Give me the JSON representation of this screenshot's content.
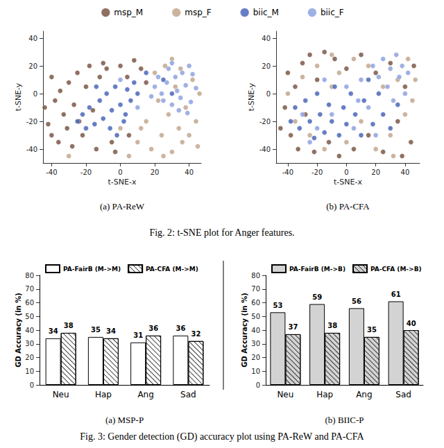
{
  "captions": [
    "Fig. 2: t-SNE plot for Anger features.",
    "Fig. 3: Gender detection (GD) accuracy plot using PA-ReW and PA-CFA"
  ],
  "chart_data": [
    {
      "type": "scatter",
      "title": "(a) PA-ReW",
      "x_label": "t-SNE-x",
      "y_label": "t-SNE-y",
      "xlim": [
        -45,
        47
      ],
      "ylim": [
        -50,
        45
      ],
      "xticks": [
        -40,
        -20,
        0,
        20,
        40
      ],
      "yticks": [
        -40,
        -20,
        0,
        20,
        40
      ],
      "grid": false,
      "legend": "top",
      "series": [
        {
          "name": "msp_M",
          "color": "#7b5747",
          "values": [
            [
              -44,
              -10
            ],
            [
              -42,
              -22
            ],
            [
              -40,
              -30
            ],
            [
              -38,
              -5
            ],
            [
              -36,
              -35
            ],
            [
              -35,
              2
            ],
            [
              -33,
              -15
            ],
            [
              -31,
              -25
            ],
            [
              -30,
              8
            ],
            [
              -28,
              -38
            ],
            [
              -27,
              -8
            ],
            [
              -25,
              15
            ],
            [
              -24,
              -20
            ],
            [
              -22,
              -30
            ],
            [
              -20,
              5
            ],
            [
              -18,
              20
            ],
            [
              -16,
              -12
            ],
            [
              -14,
              -40
            ],
            [
              -12,
              12
            ],
            [
              -10,
              22
            ],
            [
              -8,
              18
            ],
            [
              -5,
              -35
            ],
            [
              0,
              20
            ],
            [
              4,
              12
            ],
            [
              8,
              24
            ],
            [
              12,
              18
            ],
            [
              15,
              8
            ],
            [
              -3,
              -42
            ],
            [
              5,
              -30
            ],
            [
              -40,
              12
            ]
          ]
        },
        {
          "name": "msp_F",
          "color": "#c2a78e",
          "values": [
            [
              15,
              -20
            ],
            [
              18,
              -40
            ],
            [
              20,
              15
            ],
            [
              22,
              -5
            ],
            [
              24,
              -30
            ],
            [
              26,
              20
            ],
            [
              28,
              -15
            ],
            [
              30,
              -42
            ],
            [
              32,
              5
            ],
            [
              34,
              -25
            ],
            [
              36,
              -35
            ],
            [
              38,
              -10
            ],
            [
              40,
              -30
            ],
            [
              42,
              10
            ],
            [
              44,
              -20
            ],
            [
              46,
              0
            ],
            [
              45,
              -38
            ],
            [
              10,
              -35
            ],
            [
              5,
              -45
            ],
            [
              0,
              -25
            ],
            [
              25,
              -45
            ],
            [
              35,
              18
            ],
            [
              -30,
              -45
            ],
            [
              30,
              25
            ],
            [
              12,
              -25
            ]
          ]
        },
        {
          "name": "biic_M",
          "color": "#4a66b8",
          "values": [
            [
              -25,
              -20
            ],
            [
              -22,
              -15
            ],
            [
              -20,
              -25
            ],
            [
              -18,
              -10
            ],
            [
              -15,
              -22
            ],
            [
              -12,
              -5
            ],
            [
              -10,
              -18
            ],
            [
              -8,
              0
            ],
            [
              -5,
              -12
            ],
            [
              -3,
              5
            ],
            [
              0,
              -8
            ],
            [
              2,
              -20
            ],
            [
              4,
              3
            ],
            [
              6,
              -5
            ],
            [
              8,
              8
            ],
            [
              -6,
              -25
            ],
            [
              -2,
              -30
            ],
            [
              10,
              0
            ],
            [
              -14,
              5
            ],
            [
              3,
              -15
            ],
            [
              25,
              10
            ],
            [
              30,
              0
            ],
            [
              15,
              15
            ]
          ]
        },
        {
          "name": "biic_F",
          "color": "#8ea2e0",
          "values": [
            [
              20,
              5
            ],
            [
              22,
              12
            ],
            [
              25,
              -5
            ],
            [
              27,
              8
            ],
            [
              28,
              18
            ],
            [
              30,
              -8
            ],
            [
              32,
              12
            ],
            [
              33,
              2
            ],
            [
              35,
              -3
            ],
            [
              36,
              15
            ],
            [
              38,
              6
            ],
            [
              40,
              20
            ],
            [
              41,
              -6
            ],
            [
              42,
              14
            ],
            [
              44,
              4
            ],
            [
              30,
              22
            ],
            [
              34,
              -12
            ],
            [
              24,
              0
            ],
            [
              39,
              -14
            ],
            [
              18,
              -2
            ],
            [
              10,
              -10
            ],
            [
              0,
              10
            ]
          ]
        }
      ]
    },
    {
      "type": "scatter",
      "title": "(b) PA-CFA",
      "x_label": "t-SNE-x",
      "y_label": "t-SNE-y",
      "xlim": [
        -48,
        50
      ],
      "ylim": [
        -50,
        45
      ],
      "xticks": [
        -40,
        -20,
        0,
        20,
        40
      ],
      "yticks": [
        -40,
        -20,
        0,
        20,
        40
      ],
      "grid": false,
      "legend": "top",
      "series": [
        {
          "name": "msp_M",
          "color": "#7b5747",
          "values": [
            [
              -42,
              -10
            ],
            [
              -40,
              15
            ],
            [
              -38,
              -30
            ],
            [
              -35,
              5
            ],
            [
              -33,
              -40
            ],
            [
              -30,
              22
            ],
            [
              -28,
              -15
            ],
            [
              -25,
              28
            ],
            [
              -22,
              -42
            ],
            [
              -20,
              10
            ],
            [
              -15,
              30
            ],
            [
              -12,
              -35
            ],
            [
              -8,
              25
            ],
            [
              -5,
              -45
            ],
            [
              0,
              18
            ],
            [
              5,
              -40
            ],
            [
              10,
              28
            ],
            [
              15,
              -30
            ],
            [
              20,
              15
            ],
            [
              25,
              -42
            ],
            [
              30,
              22
            ],
            [
              35,
              -20
            ],
            [
              40,
              5
            ],
            [
              44,
              -35
            ],
            [
              46,
              20
            ],
            [
              38,
              -45
            ],
            [
              -45,
              -25
            ]
          ]
        },
        {
          "name": "msp_F",
          "color": "#c2a78e",
          "values": [
            [
              -40,
              0
            ],
            [
              -35,
              -20
            ],
            [
              -30,
              12
            ],
            [
              -25,
              -30
            ],
            [
              -20,
              20
            ],
            [
              -15,
              -40
            ],
            [
              -10,
              5
            ],
            [
              -5,
              15
            ],
            [
              0,
              -35
            ],
            [
              5,
              25
            ],
            [
              10,
              -20
            ],
            [
              15,
              20
            ],
            [
              20,
              -40
            ],
            [
              25,
              5
            ],
            [
              30,
              -30
            ],
            [
              35,
              10
            ],
            [
              40,
              -15
            ],
            [
              42,
              25
            ],
            [
              45,
              -5
            ],
            [
              47,
              10
            ],
            [
              32,
              -45
            ],
            [
              -10,
              28
            ]
          ]
        },
        {
          "name": "biic_M",
          "color": "#4a66b8",
          "values": [
            [
              -38,
              -20
            ],
            [
              -35,
              -10
            ],
            [
              -32,
              -25
            ],
            [
              -28,
              -5
            ],
            [
              -25,
              -20
            ],
            [
              -22,
              -32
            ],
            [
              -20,
              0
            ],
            [
              -18,
              -15
            ],
            [
              -15,
              -28
            ],
            [
              -12,
              -8
            ],
            [
              -10,
              -20
            ],
            [
              -8,
              5
            ],
            [
              -5,
              -30
            ],
            [
              -2,
              -10
            ],
            [
              0,
              -22
            ],
            [
              3,
              0
            ],
            [
              6,
              -15
            ],
            [
              10,
              -30
            ],
            [
              12,
              -5
            ],
            [
              15,
              10
            ],
            [
              18,
              -22
            ],
            [
              22,
              0
            ],
            [
              25,
              -15
            ],
            [
              30,
              -25
            ],
            [
              35,
              -8
            ]
          ]
        },
        {
          "name": "biic_F",
          "color": "#8ea2e0",
          "values": [
            [
              -30,
              -15
            ],
            [
              -20,
              -25
            ],
            [
              -10,
              -15
            ],
            [
              0,
              5
            ],
            [
              5,
              -25
            ],
            [
              10,
              10
            ],
            [
              15,
              -10
            ],
            [
              18,
              20
            ],
            [
              22,
              12
            ],
            [
              25,
              25
            ],
            [
              28,
              5
            ],
            [
              30,
              18
            ],
            [
              32,
              -5
            ],
            [
              34,
              28
            ],
            [
              36,
              12
            ],
            [
              38,
              20
            ],
            [
              40,
              0
            ],
            [
              42,
              15
            ],
            [
              20,
              -30
            ],
            [
              8,
              -5
            ],
            [
              -15,
              10
            ],
            [
              -25,
              -35
            ]
          ]
        }
      ]
    },
    {
      "type": "bar",
      "title": "(a) MSP-P",
      "y_label": "GD Accuracy (in %)",
      "categories": [
        "Neu",
        "Hap",
        "Ang",
        "Sad"
      ],
      "ylim": [
        0,
        80
      ],
      "yticks": [
        0,
        10,
        20,
        30,
        40,
        50,
        60,
        70,
        80
      ],
      "grid": false,
      "legend": "top",
      "data_labels": true,
      "series": [
        {
          "name": "PA-FairB (M->M)",
          "color": "#ffffff",
          "values": [
            34,
            35,
            31,
            36
          ]
        },
        {
          "name": "PA-CFA (M->M)",
          "color": "#ffffff",
          "values": [
            38,
            34,
            36,
            32
          ]
        }
      ]
    },
    {
      "type": "bar",
      "title": "(b) BIIC-P",
      "y_label": "GD Accuracy (in %)",
      "categories": [
        "Neu",
        "Hap",
        "Ang",
        "Sad"
      ],
      "ylim": [
        0,
        80
      ],
      "yticks": [
        0,
        10,
        20,
        30,
        40,
        50,
        60,
        70,
        80
      ],
      "grid": false,
      "legend": "top",
      "data_labels": true,
      "series": [
        {
          "name": "PA-FairB (M->B)",
          "color": "#d3d3d3",
          "values": [
            53,
            59,
            56,
            61
          ]
        },
        {
          "name": "PA-CFA (M->B)",
          "color": "#d3d3d3",
          "values": [
            37,
            38,
            35,
            40
          ]
        }
      ]
    }
  ]
}
